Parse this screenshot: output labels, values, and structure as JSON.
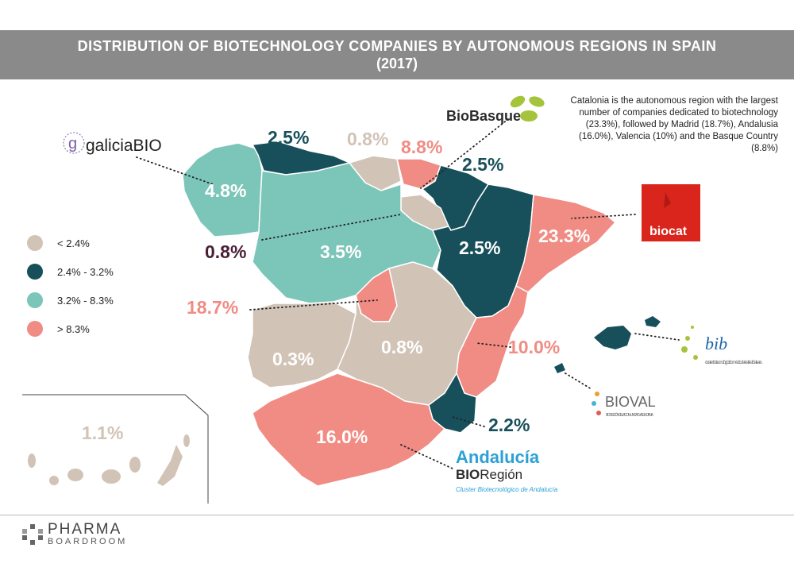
{
  "title": {
    "line1": "DISTRIBUTION OF BIOTECHNOLOGY COMPANIES BY AUTONOMOUS REGIONS IN SPAIN",
    "line2": "(2017)"
  },
  "note": "Catalonia is the autonomous region with the largest number of companies dedicated to biotechnology (23.3%), followed by Madrid (18.7%), Andalusia (16.0%), Valencia (10%) and the Basque Country (8.8%)",
  "legend": [
    {
      "label": "< 2.4%",
      "color": "#d1c3b6"
    },
    {
      "label": "2.4% - 3.2%",
      "color": "#17505a"
    },
    {
      "label": "3.2% - 8.3%",
      "color": "#7cc5b9"
    },
    {
      "label": "> 8.3%",
      "color": "#f08c84"
    }
  ],
  "regions": {
    "galicia": "4.8%",
    "asturias": "2.5%",
    "cantabria": "0.8%",
    "basque": "8.8%",
    "navarra": "2.5%",
    "aragon": "2.5%",
    "catalonia": "23.3%",
    "larioja": "0.8%",
    "castilla_leon": "3.5%",
    "madrid": "18.7%",
    "extremadura": "0.3%",
    "castilla_mancha": "0.8%",
    "valencia": "10.0%",
    "murcia": "2.2%",
    "andalusia": "16.0%",
    "canarias": "1.1%"
  },
  "logos": {
    "galicia": {
      "prefix": "g",
      "text": "galiciaBIO"
    },
    "biobasque": "BioBasque",
    "biocat": "biocat",
    "bib": "bib",
    "bib_sub": "cluster biotecnològic i biomèdic de les Illes Balears",
    "bioval": "BIOVAL",
    "bioval_sub": "BIOREGIÓN DE LA COMUNIDAD VALENCIANA",
    "andalucia": "Andalucía",
    "andalucia_bio": "BIO",
    "andalucia_region": "Región",
    "andalucia_sub": "Cluster Biotecnológico de Andalucía"
  },
  "brand": {
    "name": "PHARMA",
    "sub": "BOARDROOM"
  },
  "colors": {
    "low": "#d1c3b6",
    "mid": "#17505a",
    "high": "#7cc5b9",
    "top": "#f08c84",
    "header": "#8a8a8a"
  }
}
